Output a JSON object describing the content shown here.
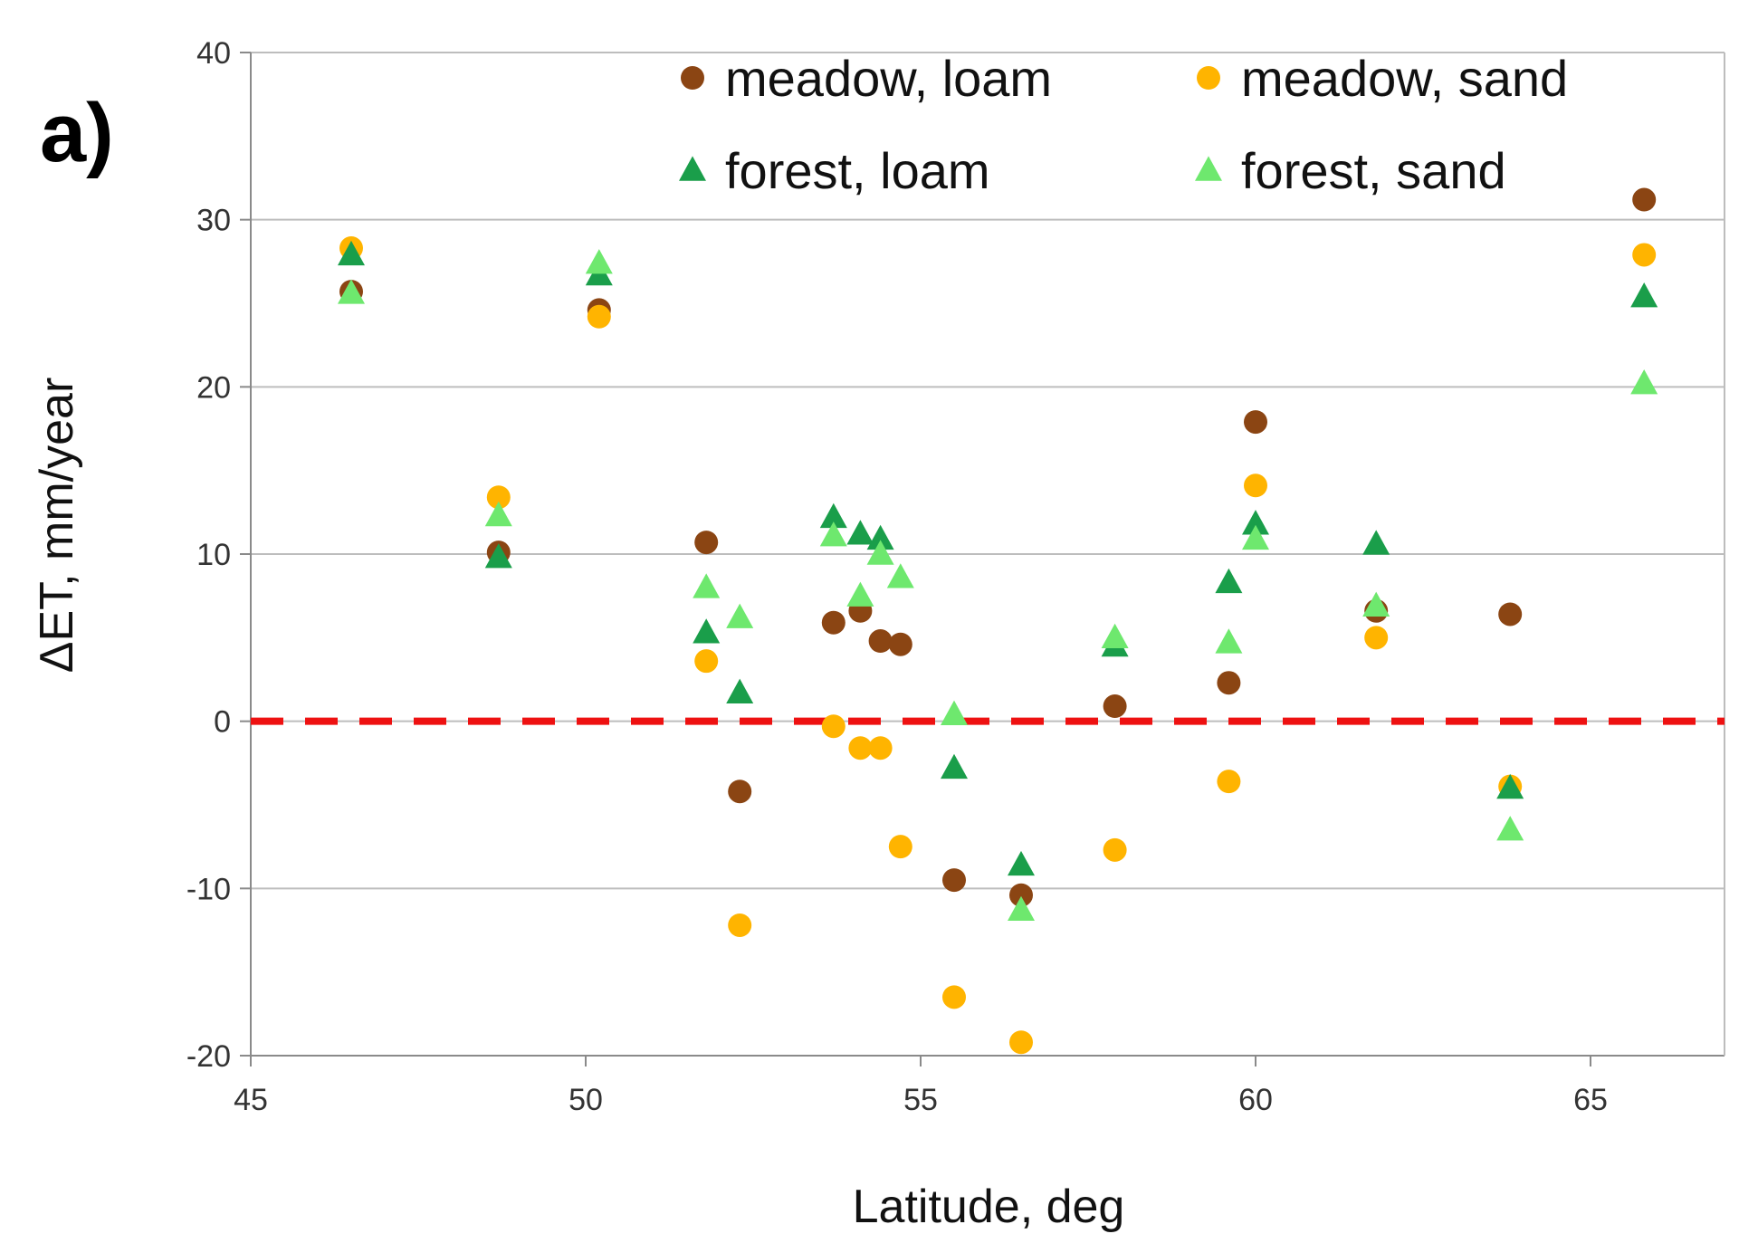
{
  "chart_data": {
    "type": "scatter",
    "panel_label": "a)",
    "title": "",
    "xlabel": "Latitude, deg",
    "ylabel": "ΔET, mm/year",
    "xlim": [
      45,
      67
    ],
    "ylim": [
      -20,
      40
    ],
    "xticks": [
      45,
      50,
      55,
      60,
      65
    ],
    "yticks": [
      -20,
      -10,
      0,
      10,
      20,
      30,
      40
    ],
    "grid": "horizontal",
    "reference_line": {
      "y": 0,
      "style": "dashed",
      "color": "#ee1111"
    },
    "legend_position": "top",
    "series": [
      {
        "name": "meadow, loam",
        "marker": "circle",
        "color": "#8b4513",
        "points": [
          [
            46.5,
            25.7
          ],
          [
            48.7,
            10.1
          ],
          [
            50.2,
            24.6
          ],
          [
            51.8,
            10.7
          ],
          [
            52.3,
            -4.2
          ],
          [
            53.7,
            5.9
          ],
          [
            54.1,
            6.6
          ],
          [
            54.4,
            4.8
          ],
          [
            54.7,
            4.6
          ],
          [
            55.5,
            -9.5
          ],
          [
            56.5,
            -10.4
          ],
          [
            57.9,
            0.9
          ],
          [
            59.6,
            2.3
          ],
          [
            60.0,
            17.9
          ],
          [
            61.8,
            6.6
          ],
          [
            63.8,
            6.4
          ],
          [
            65.8,
            31.2
          ]
        ]
      },
      {
        "name": "meadow, sand",
        "marker": "circle",
        "color": "#ffb400",
        "points": [
          [
            46.5,
            28.3
          ],
          [
            48.7,
            13.4
          ],
          [
            50.2,
            24.2
          ],
          [
            51.8,
            3.6
          ],
          [
            52.3,
            -12.2
          ],
          [
            53.7,
            -0.3
          ],
          [
            54.1,
            -1.6
          ],
          [
            54.4,
            -1.6
          ],
          [
            54.7,
            -7.5
          ],
          [
            55.5,
            -16.5
          ],
          [
            56.5,
            -19.2
          ],
          [
            57.9,
            -7.7
          ],
          [
            59.6,
            -3.6
          ],
          [
            60.0,
            14.1
          ],
          [
            61.8,
            5.0
          ],
          [
            63.8,
            -3.9
          ],
          [
            65.8,
            27.9
          ]
        ]
      },
      {
        "name": "forest, loam",
        "marker": "triangle",
        "color": "#1a9e4a",
        "points": [
          [
            46.5,
            27.9
          ],
          [
            48.7,
            9.8
          ],
          [
            50.2,
            26.7
          ],
          [
            51.8,
            5.3
          ],
          [
            52.3,
            1.7
          ],
          [
            53.7,
            12.2
          ],
          [
            54.1,
            11.2
          ],
          [
            54.4,
            10.9
          ],
          [
            55.5,
            -2.8
          ],
          [
            56.5,
            -8.6
          ],
          [
            57.9,
            4.5
          ],
          [
            59.6,
            8.3
          ],
          [
            60.0,
            11.8
          ],
          [
            61.8,
            10.6
          ],
          [
            63.8,
            -4.0
          ],
          [
            65.8,
            25.4
          ]
        ]
      },
      {
        "name": "forest, sand",
        "marker": "triangle",
        "color": "#6ee86e",
        "points": [
          [
            46.5,
            25.6
          ],
          [
            48.7,
            12.3
          ],
          [
            50.2,
            27.4
          ],
          [
            51.8,
            8.0
          ],
          [
            52.3,
            6.2
          ],
          [
            53.7,
            11.1
          ],
          [
            54.1,
            7.5
          ],
          [
            54.4,
            10.0
          ],
          [
            54.7,
            8.6
          ],
          [
            55.5,
            0.4
          ],
          [
            56.5,
            -11.3
          ],
          [
            57.9,
            5.0
          ],
          [
            59.6,
            4.7
          ],
          [
            60.0,
            10.9
          ],
          [
            61.8,
            6.9
          ],
          [
            63.8,
            -6.5
          ],
          [
            65.8,
            20.2
          ]
        ]
      }
    ]
  }
}
